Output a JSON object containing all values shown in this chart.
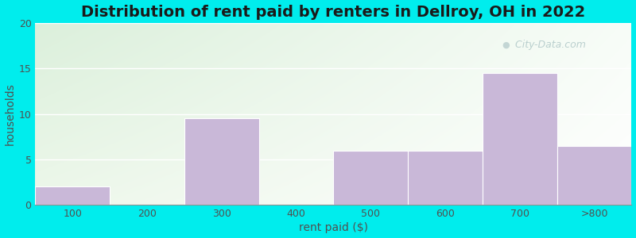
{
  "title": "Distribution of rent paid by renters in Dellroy, OH in 2022",
  "xlabel": "rent paid ($)",
  "ylabel": "households",
  "categories": [
    "100",
    "200",
    "300",
    "400",
    "500",
    "600",
    "700",
    ">800"
  ],
  "values": [
    2,
    0,
    9.5,
    0,
    6,
    6,
    14.5,
    6.5
  ],
  "bar_color": "#c9b8d8",
  "bar_edgecolor": "#ffffff",
  "ylim": [
    0,
    20
  ],
  "yticks": [
    0,
    5,
    10,
    15,
    20
  ],
  "background_outer": "#00eded",
  "title_fontsize": 14,
  "axis_label_fontsize": 10,
  "tick_fontsize": 9,
  "watermark_text": " City-Data.com",
  "watermark_icon": "●",
  "grad_color_topleft": [
    0.86,
    0.94,
    0.86
  ],
  "grad_color_topright": [
    0.97,
    0.99,
    0.97
  ],
  "grad_color_bottomleft": [
    0.93,
    0.97,
    0.92
  ],
  "grad_color_bottomright": [
    1.0,
    1.0,
    1.0
  ]
}
